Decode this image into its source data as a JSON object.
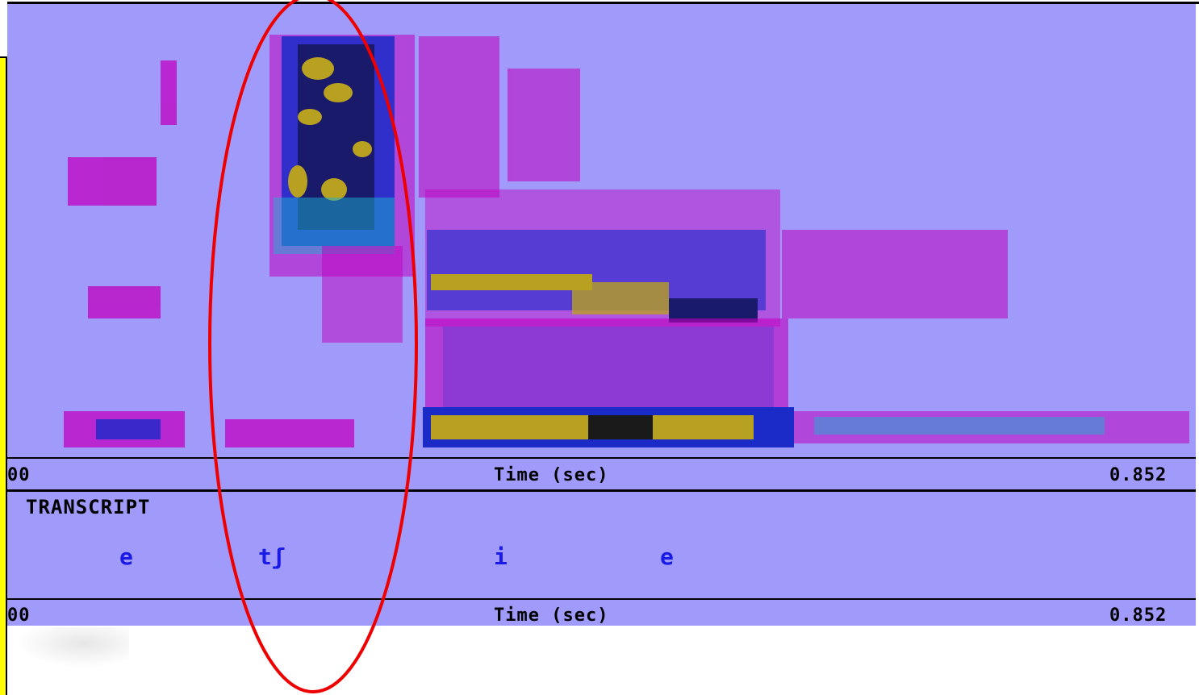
{
  "spectrogram": {
    "time_axis_start": "00",
    "time_axis_label": "Time (sec)",
    "time_axis_end": "0.852"
  },
  "transcript": {
    "title": "TRANSCRIPT",
    "segments": [
      "e",
      "tʃ",
      "i",
      "e"
    ],
    "time_axis_start": "00",
    "time_axis_label": "Time (sec)",
    "time_axis_end": "0.852"
  },
  "colors": {
    "panel_bg": "#a09bfa",
    "annotation_ellipse": "#ee0000",
    "segment_text": "#1a1ae6",
    "side_bar": "#ffff00"
  }
}
